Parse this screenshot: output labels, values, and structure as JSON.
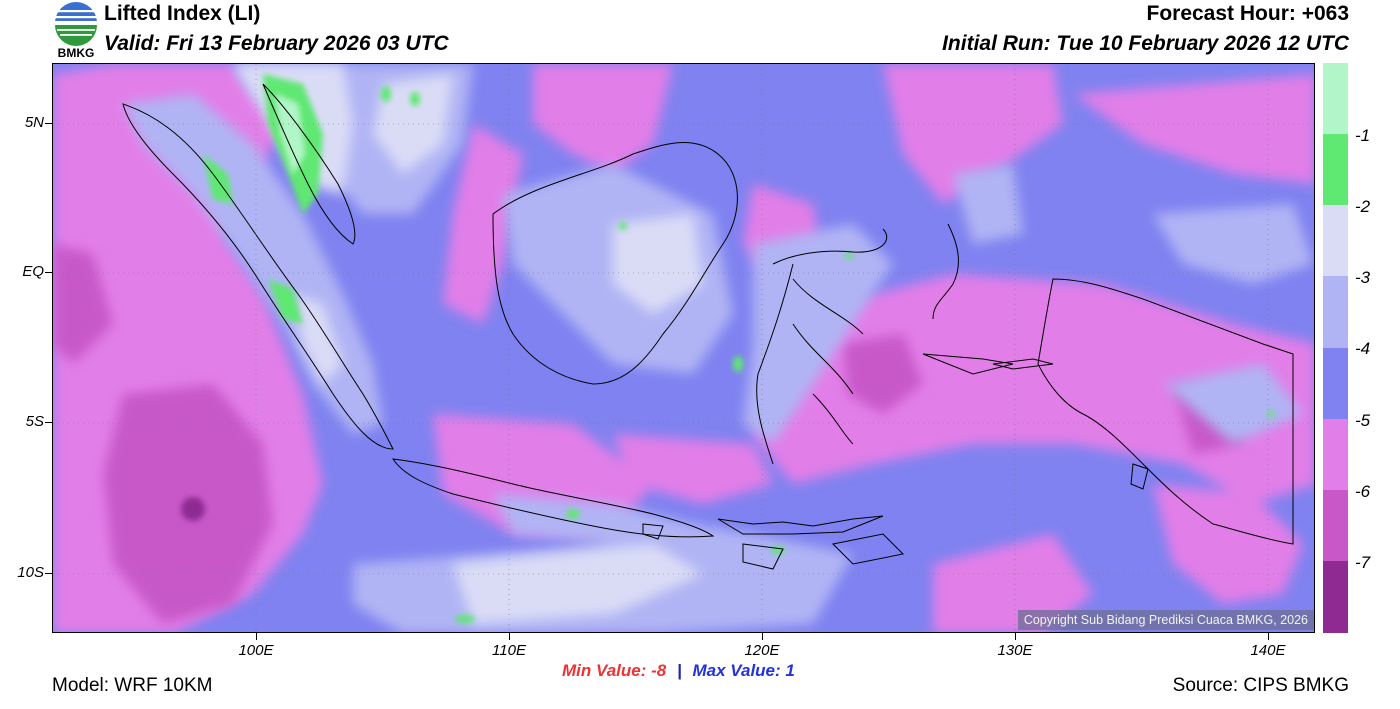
{
  "header": {
    "title": "Lifted Index (LI)",
    "valid": "Valid: Fri 13 February 2026 03 UTC",
    "forecast_hour": "Forecast Hour: +063",
    "initial_run": "Initial Run: Tue 10 February 2026 12 UTC"
  },
  "logo": {
    "text": "BMKG",
    "icon": "bmkg-logo-icon"
  },
  "map": {
    "lat_labels": [
      "5N",
      "EQ",
      "5S",
      "10S"
    ],
    "lon_labels": [
      "100E",
      "110E",
      "120E",
      "130E",
      "140E"
    ],
    "copyright": "Copyright Sub Bidang Prediksi Cuaca BMKG, 2026"
  },
  "colorbar": {
    "labels": [
      "-1",
      "-2",
      "-3",
      "-4",
      "-5",
      "-6",
      "-7"
    ],
    "colors": [
      "#b2f5c8",
      "#5fe872",
      "#dadcf6",
      "#b0b4f4",
      "#7f82f0",
      "#e27ee8",
      "#c858c8",
      "#8e2a92"
    ]
  },
  "footer": {
    "min_label": "Min Value:",
    "min_value": "-8",
    "separator": "|",
    "max_label": "Max Value:",
    "max_value": "1",
    "model": "Model: WRF 10KM",
    "source": "Source: CIPS BMKG"
  }
}
